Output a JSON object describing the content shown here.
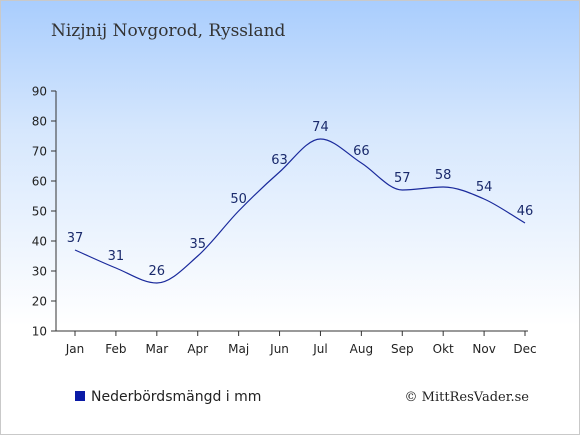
{
  "title": "Nizjnij Novgorod, Ryssland",
  "legend": {
    "label": "Nederbördsmängd i mm",
    "swatch_color": "#0a1aa6"
  },
  "credit": "© MittResVader.se",
  "chart_data": {
    "type": "line",
    "categories": [
      "Jan",
      "Feb",
      "Mar",
      "Apr",
      "Maj",
      "Jun",
      "Jul",
      "Aug",
      "Sep",
      "Okt",
      "Nov",
      "Dec"
    ],
    "series": [
      {
        "name": "Nederbördsmängd i mm",
        "color": "#1a2a9c",
        "values": [
          37,
          31,
          26,
          35,
          50,
          63,
          74,
          66,
          57,
          58,
          54,
          46
        ]
      }
    ],
    "ylim": [
      10,
      90
    ],
    "yticks": [
      10,
      20,
      30,
      40,
      50,
      60,
      70,
      80,
      90
    ],
    "grid": false,
    "data_labels": true
  }
}
